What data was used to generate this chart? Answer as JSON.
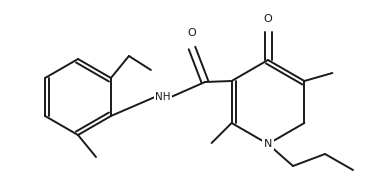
{
  "bg_color": "#ffffff",
  "line_color": "#1a1a1a",
  "line_width": 1.4,
  "figsize": [
    3.66,
    1.84
  ],
  "dpi": 100,
  "xlim": [
    0,
    366
  ],
  "ylim": [
    0,
    184
  ]
}
